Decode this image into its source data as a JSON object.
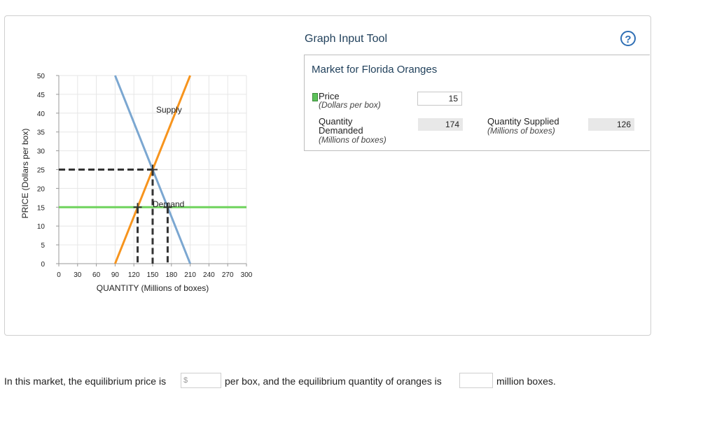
{
  "tool": {
    "title": "Graph Input Tool",
    "help_icon": "question-icon"
  },
  "market": {
    "title": "Market for Florida Oranges",
    "price_label": "Price",
    "price_unit": "(Dollars per box)",
    "price_value": "15",
    "qd_label_line1": "Quantity",
    "qd_label_line2": "Demanded",
    "qd_unit": "(Millions of boxes)",
    "qd_value": "174",
    "qs_label": "Quantity Supplied",
    "qs_unit": "(Millions of boxes)",
    "qs_value": "126"
  },
  "question": {
    "text_before": "In this market, the equilibrium price is",
    "price_prefix": "$",
    "text_middle": "per box, and the equilibrium quantity of oranges is",
    "text_after": "million boxes."
  },
  "chart_data": {
    "type": "line",
    "xlabel": "QUANTITY (Millions of boxes)",
    "ylabel": "PRICE (Dollars per box)",
    "xlim": [
      0,
      300
    ],
    "ylim": [
      0,
      50
    ],
    "xticks": [
      0,
      30,
      60,
      90,
      120,
      150,
      180,
      210,
      240,
      270,
      300
    ],
    "yticks": [
      0,
      5,
      10,
      15,
      20,
      25,
      30,
      35,
      40,
      45,
      50
    ],
    "series": [
      {
        "name": "Supply",
        "color": "#f7941d",
        "points": [
          [
            90,
            0
          ],
          [
            210,
            50
          ]
        ]
      },
      {
        "name": "Demand",
        "color": "#7ba7d1",
        "points": [
          [
            90,
            50
          ],
          [
            210,
            0
          ]
        ]
      }
    ],
    "price_line": {
      "y": 15,
      "color": "#6fd35c"
    },
    "equilibrium": {
      "x": 150,
      "y": 25
    },
    "marked_points": [
      [
        126,
        15
      ],
      [
        174,
        15
      ]
    ]
  }
}
